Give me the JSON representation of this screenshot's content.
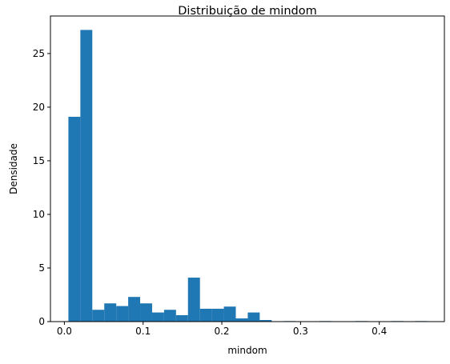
{
  "chart_data": {
    "type": "bar",
    "title": "Distribuição de mindom",
    "xlabel": "mindom",
    "ylabel": "Densidade",
    "xlim": [
      -0.0177,
      0.4827
    ],
    "ylim": [
      0,
      28.5
    ],
    "xticks": [
      0.0,
      0.1,
      0.2,
      0.3,
      0.4
    ],
    "xtick_labels": [
      "0.0",
      "0.1",
      "0.2",
      "0.3",
      "0.4"
    ],
    "yticks": [
      0,
      5,
      10,
      15,
      20,
      25
    ],
    "ytick_labels": [
      "0",
      "5",
      "10",
      "15",
      "20",
      "25"
    ],
    "bin_start": 0.0051,
    "bin_width": 0.01519,
    "values": [
      19.1,
      27.2,
      1.1,
      1.7,
      1.45,
      2.3,
      1.7,
      0.85,
      1.1,
      0.6,
      4.1,
      1.2,
      1.2,
      1.4,
      0.3,
      0.85,
      0.15,
      0,
      0.05,
      0,
      0,
      0.05,
      0,
      0,
      0.05,
      0,
      0,
      0.05,
      0,
      0.05
    ],
    "color": "#1f77b4",
    "grid": false,
    "legend": "none"
  }
}
